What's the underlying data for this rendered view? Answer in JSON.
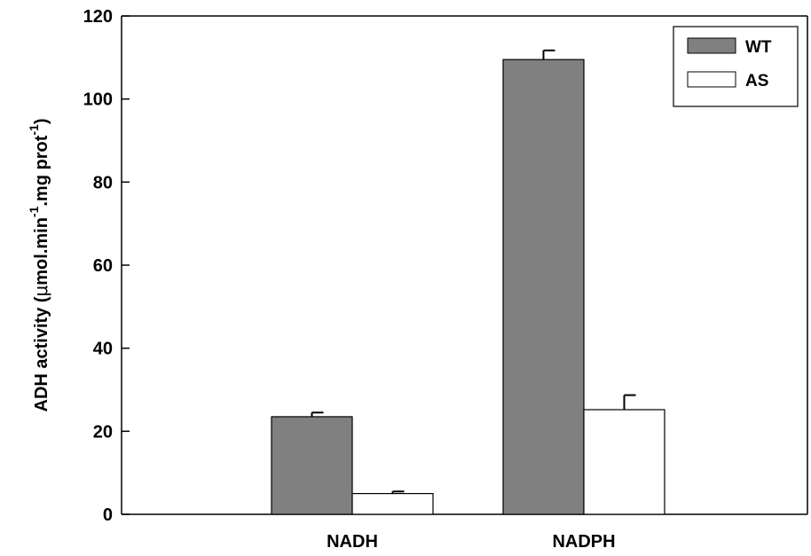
{
  "chart_data": {
    "type": "bar",
    "categories": [
      "NADH",
      "NADPH"
    ],
    "series": [
      {
        "name": "WT",
        "values": [
          23.5,
          109.5
        ],
        "errors": [
          1.0,
          2.2
        ],
        "color": "#808080"
      },
      {
        "name": "AS",
        "values": [
          5.0,
          25.2
        ],
        "errors": [
          0.5,
          3.5
        ],
        "color": "#ffffff"
      }
    ],
    "ylabel": {
      "prefix": "ADH activity (",
      "mu": "μ",
      "unit1": "mol.min",
      "sup1": "-1",
      "unit2": ".mg prot",
      "sup2": "-1",
      "suffix": ")"
    },
    "ylim": [
      0,
      120
    ],
    "yticks": [
      "0",
      "20",
      "40",
      "60",
      "80",
      "100",
      "120"
    ],
    "grid": false,
    "legend_position": "top-right"
  }
}
